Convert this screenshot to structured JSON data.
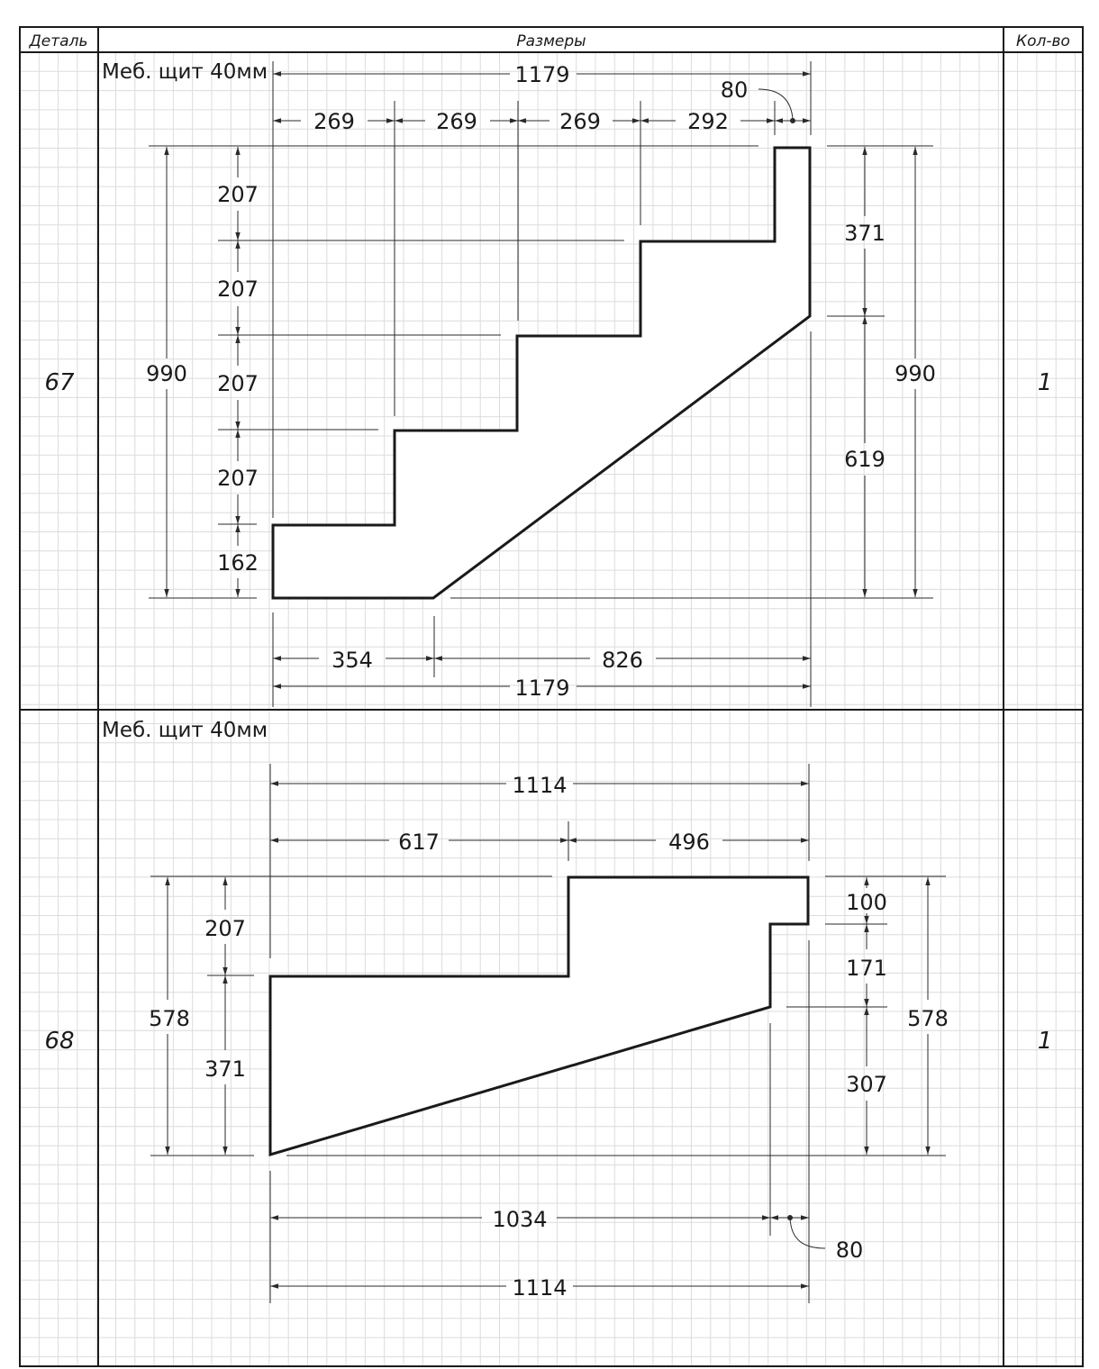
{
  "header": {
    "detail_label": "Деталь",
    "size_label": "Размеры",
    "qty_label": "Кол-во"
  },
  "rows": [
    {
      "detail": "67",
      "qty": "1",
      "material": "Меб. щит 40мм",
      "dims": {
        "overall_width_top": "1179",
        "corner_80": "80",
        "step_1": "269",
        "step_2": "269",
        "step_3": "269",
        "step_4": "292",
        "rise_1": "207",
        "rise_2": "207",
        "rise_3": "207",
        "rise_4": "207",
        "bottom_rise": "162",
        "height_left": "990",
        "height_right": "990",
        "right_top": "371",
        "right_bottom": "619",
        "bottom_left": "354",
        "bottom_right": "826",
        "overall_width_bottom": "1179"
      }
    },
    {
      "detail": "68",
      "qty": "1",
      "material": "Меб. щит 40мм",
      "dims": {
        "overall_width_top": "1114",
        "top_left": "617",
        "top_right": "496",
        "height_left": "578",
        "left_upper": "207",
        "left_lower": "371",
        "right_a": "100",
        "right_b": "171",
        "right_c": "307",
        "height_right": "578",
        "bottom_1034": "1034",
        "corner_80": "80",
        "overall_width_bottom": "1114"
      }
    }
  ]
}
